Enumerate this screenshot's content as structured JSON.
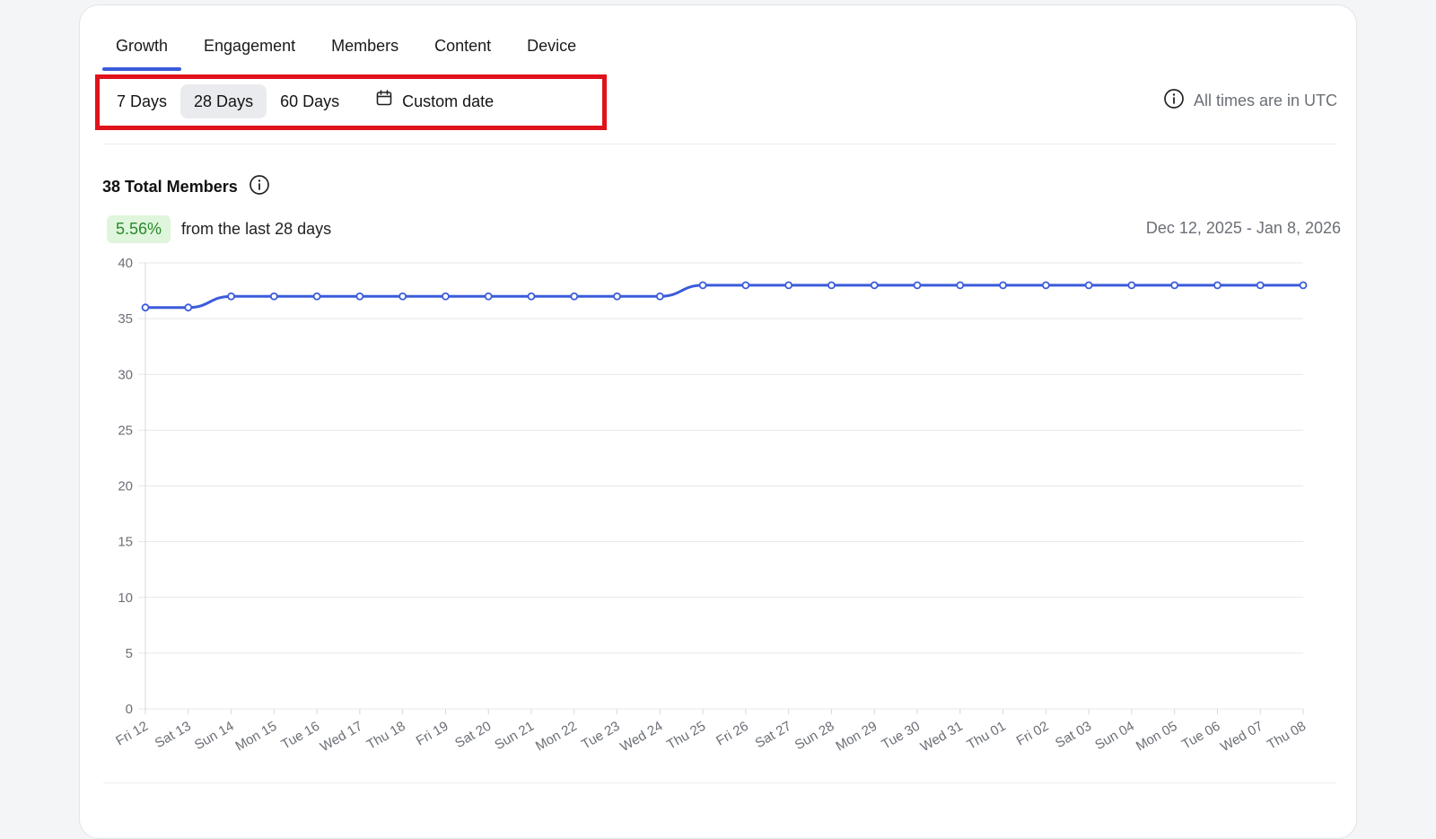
{
  "tabs": [
    "Growth",
    "Engagement",
    "Members",
    "Content",
    "Device"
  ],
  "active_tab": 0,
  "ranges": [
    "7 Days",
    "28 Days",
    "60 Days"
  ],
  "selected_range": 1,
  "custom_date_label": "Custom date",
  "utc_note": "All times are in UTC",
  "total_members_label": "38 Total Members",
  "change_badge": "5.56%",
  "change_text": "from the last 28 days",
  "date_range": "Dec 12, 2025 - Jan 8, 2026",
  "colors": {
    "accent": "#3b5bdb",
    "highlight_border": "#e0121b",
    "badge_bg": "#dff5dc",
    "badge_text": "#2a8a2a"
  },
  "chart_data": {
    "type": "line",
    "x": [
      "Fri 12",
      "Sat 13",
      "Sun 14",
      "Mon 15",
      "Tue 16",
      "Wed 17",
      "Thu 18",
      "Fri 19",
      "Sat 20",
      "Sun 21",
      "Mon 22",
      "Tue 23",
      "Wed 24",
      "Thu 25",
      "Fri 26",
      "Sat 27",
      "Sun 28",
      "Mon 29",
      "Tue 30",
      "Wed 31",
      "Thu 01",
      "Fri 02",
      "Sat 03",
      "Sun 04",
      "Mon 05",
      "Tue 06",
      "Wed 07",
      "Thu 08"
    ],
    "series": [
      {
        "values": [
          36,
          36,
          37,
          37,
          37,
          37,
          37,
          37,
          37,
          37,
          37,
          37,
          37,
          38,
          38,
          38,
          38,
          38,
          38,
          38,
          38,
          38,
          38,
          38,
          38,
          38,
          38,
          38
        ]
      }
    ],
    "ylim": [
      0,
      40
    ],
    "yticks": [
      0,
      5,
      10,
      15,
      20,
      25,
      30,
      35,
      40
    ],
    "grid": true,
    "color": "#3b5bdb"
  }
}
